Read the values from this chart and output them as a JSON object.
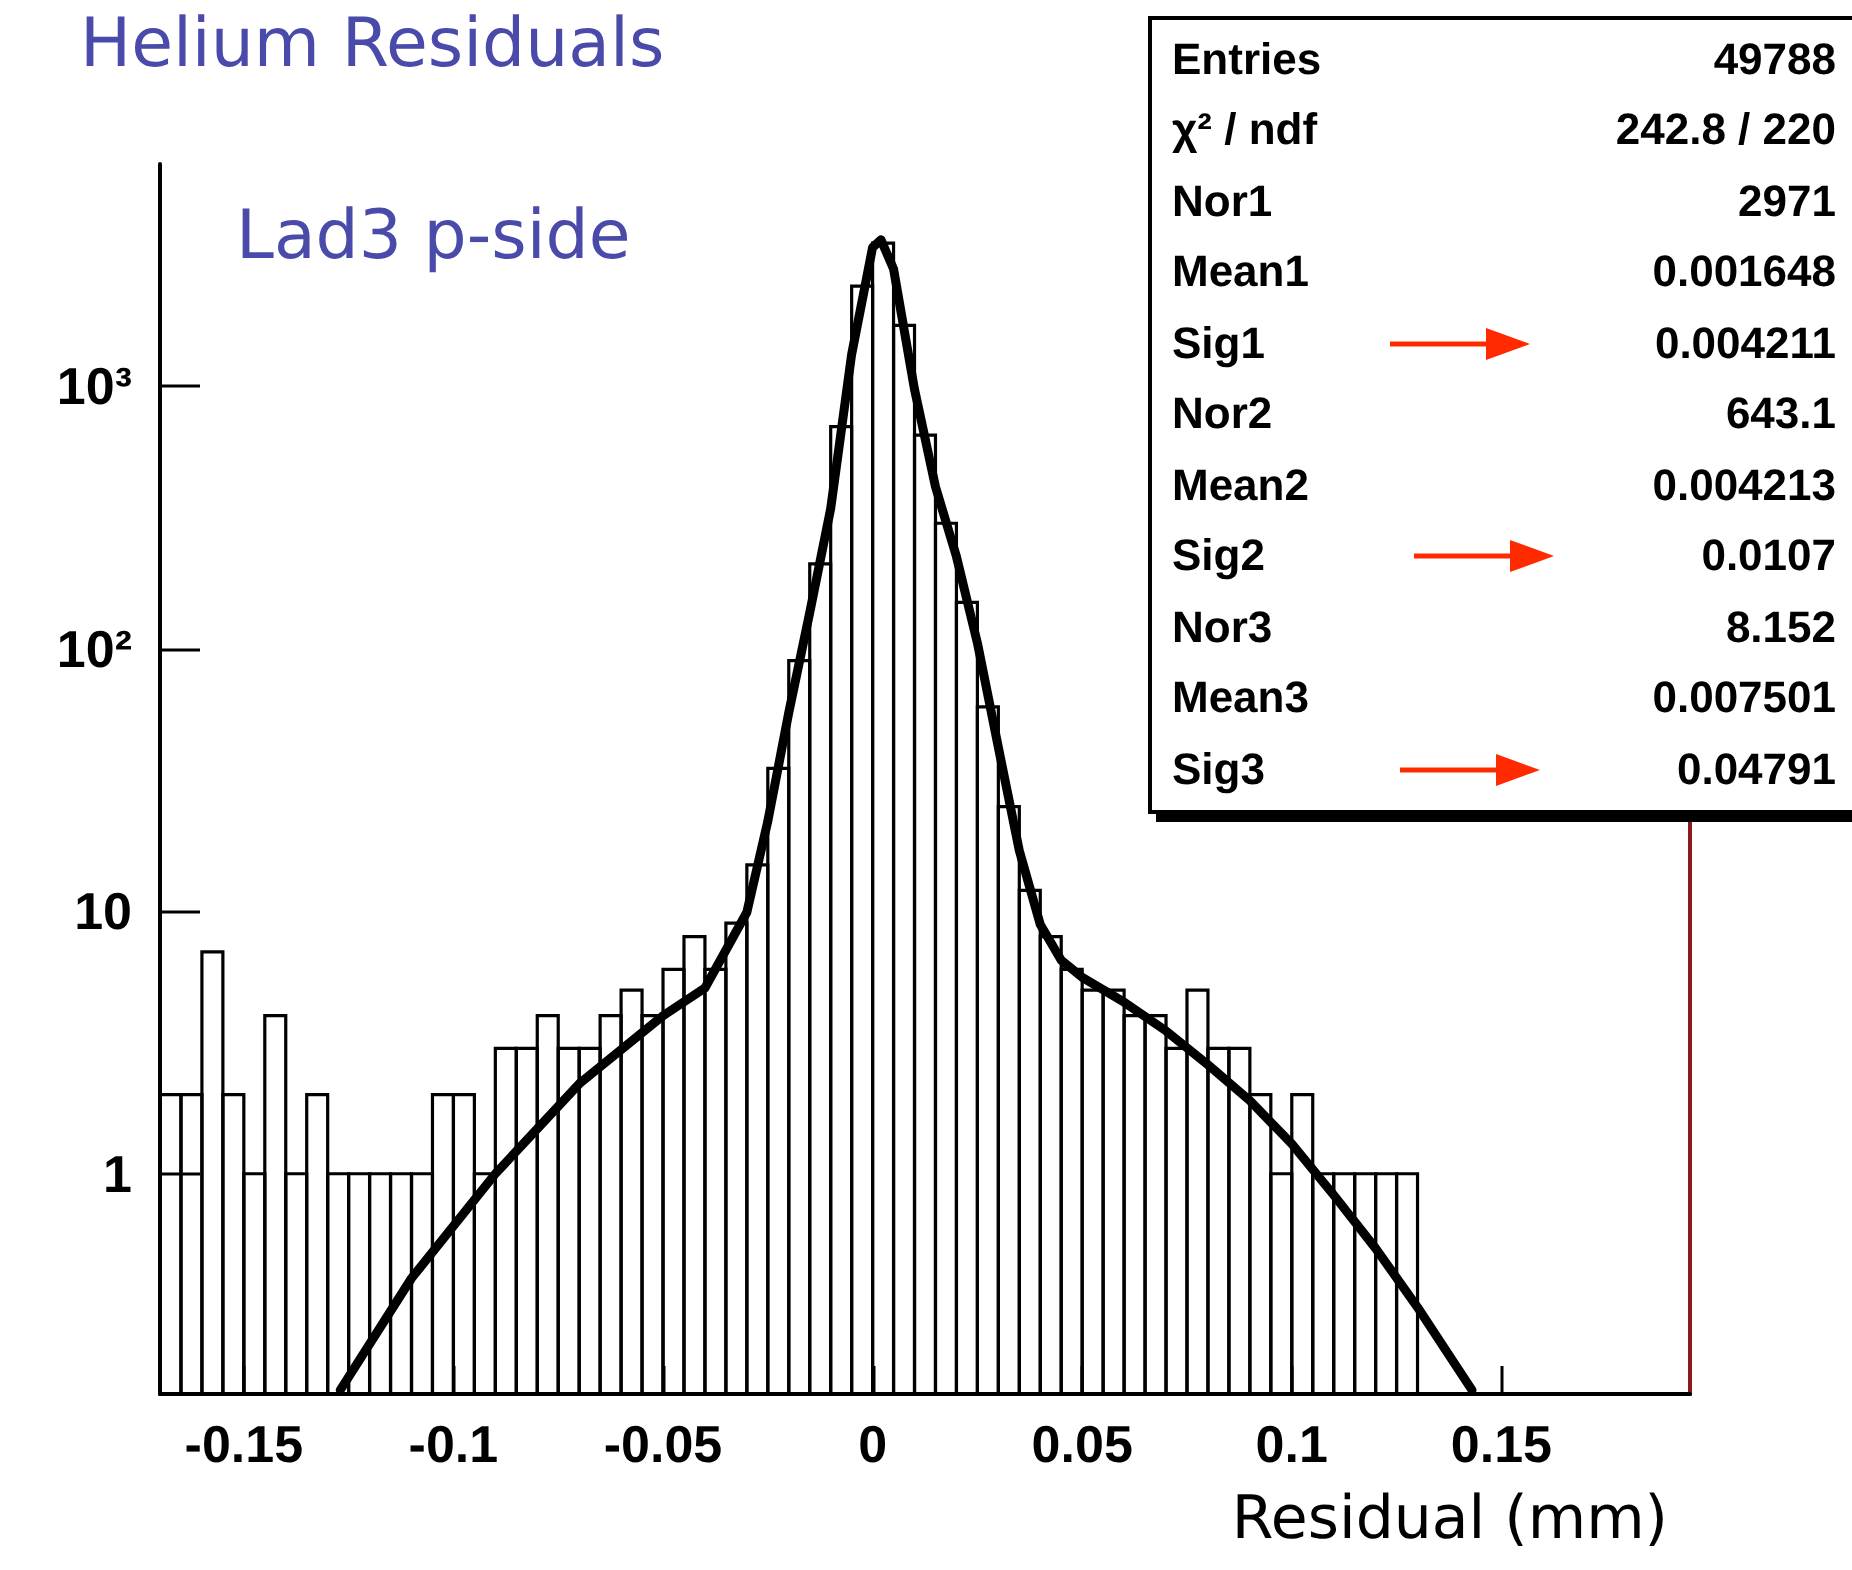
{
  "chart_data": {
    "type": "histogram",
    "title": "Helium Residuals",
    "xlabel": "Residual (mm)",
    "annotations": [
      "Lad3 p-side",
      "Entries  49788",
      "χ² / ndf  242.8 / 220",
      "Nor1  2971",
      "Mean1  0.001648",
      "Sig1  0.004211",
      "Nor2  643.1",
      "Mean2  0.004213",
      "Sig2  0.0107",
      "Nor3  8.152",
      "Mean3  0.007501",
      "Sig3  0.04791"
    ],
    "xlim": [
      -0.17,
      0.195
    ],
    "ylim": [
      0.145,
      7000
    ],
    "log": "y",
    "xticks": [
      -0.15,
      -0.1,
      -0.05,
      0,
      0.05,
      0.1,
      0.15
    ],
    "yticks": [
      1,
      10,
      {
        "value": 100,
        "label": "10²"
      },
      {
        "value": 1000,
        "label": "10³"
      }
    ],
    "series": [
      {
        "type": "histogram",
        "color": "#000000",
        "bins": [
          -0.17,
          -0.165,
          -0.16,
          -0.155,
          -0.15,
          -0.145,
          -0.14,
          -0.135,
          -0.13,
          -0.125,
          -0.12,
          -0.115,
          -0.11,
          -0.105,
          -0.1,
          -0.095,
          -0.09,
          -0.085,
          -0.08,
          -0.075,
          -0.07,
          -0.065,
          -0.06,
          -0.055,
          -0.05,
          -0.045,
          -0.04,
          -0.035,
          -0.03,
          -0.025,
          -0.02,
          -0.015,
          -0.01,
          -0.005,
          0,
          0.005,
          0.01,
          0.015,
          0.02,
          0.025,
          0.03,
          0.035,
          0.04,
          0.045,
          0.05,
          0.055,
          0.06,
          0.065,
          0.07,
          0.075,
          0.08,
          0.085,
          0.09,
          0.095,
          0.1,
          0.105,
          0.11,
          0.115,
          0.12,
          0.125,
          0.13,
          0.135,
          0.14,
          0.145,
          0.15,
          0.155,
          0.16,
          0.165,
          0.17,
          0.175,
          0.18,
          0.185,
          0.19,
          0.195
        ],
        "values": [
          2,
          2,
          7,
          2,
          1,
          4,
          1,
          2,
          1,
          1,
          1,
          1,
          1,
          2,
          2,
          1,
          3,
          3,
          4,
          3,
          3,
          4,
          5,
          4,
          6,
          8,
          6,
          9,
          15,
          35,
          90,
          210,
          700,
          2400,
          3500,
          1700,
          650,
          300,
          150,
          60,
          25,
          12,
          8,
          6,
          5,
          5,
          4,
          4,
          3,
          5,
          3,
          3,
          2,
          1,
          2,
          1,
          1,
          1,
          1,
          1,
          null,
          null,
          null,
          null,
          null,
          null,
          null,
          null,
          null,
          null,
          null,
          null,
          null
        ]
      },
      {
        "type": "line",
        "color": "#000000",
        "x": [
          -0.127,
          -0.11,
          -0.09,
          -0.07,
          -0.05,
          -0.04,
          -0.03,
          -0.025,
          -0.02,
          -0.015,
          -0.01,
          -0.005,
          0,
          0.002,
          0.005,
          0.01,
          0.015,
          0.02,
          0.025,
          0.03,
          0.035,
          0.04,
          0.045,
          0.05,
          0.06,
          0.07,
          0.08,
          0.09,
          0.1,
          0.11,
          0.12,
          0.13,
          0.143
        ],
        "values": [
          0.15,
          0.4,
          1.0,
          2.2,
          4.0,
          5.1,
          9.9,
          22,
          57,
          137,
          341,
          1320,
          3370,
          3600,
          2790,
          970,
          413,
          224,
          105,
          42,
          17,
          8.9,
          6.5,
          5.6,
          4.5,
          3.5,
          2.6,
          1.9,
          1.3,
          0.83,
          0.52,
          0.31,
          0.15
        ]
      }
    ]
  }
}
